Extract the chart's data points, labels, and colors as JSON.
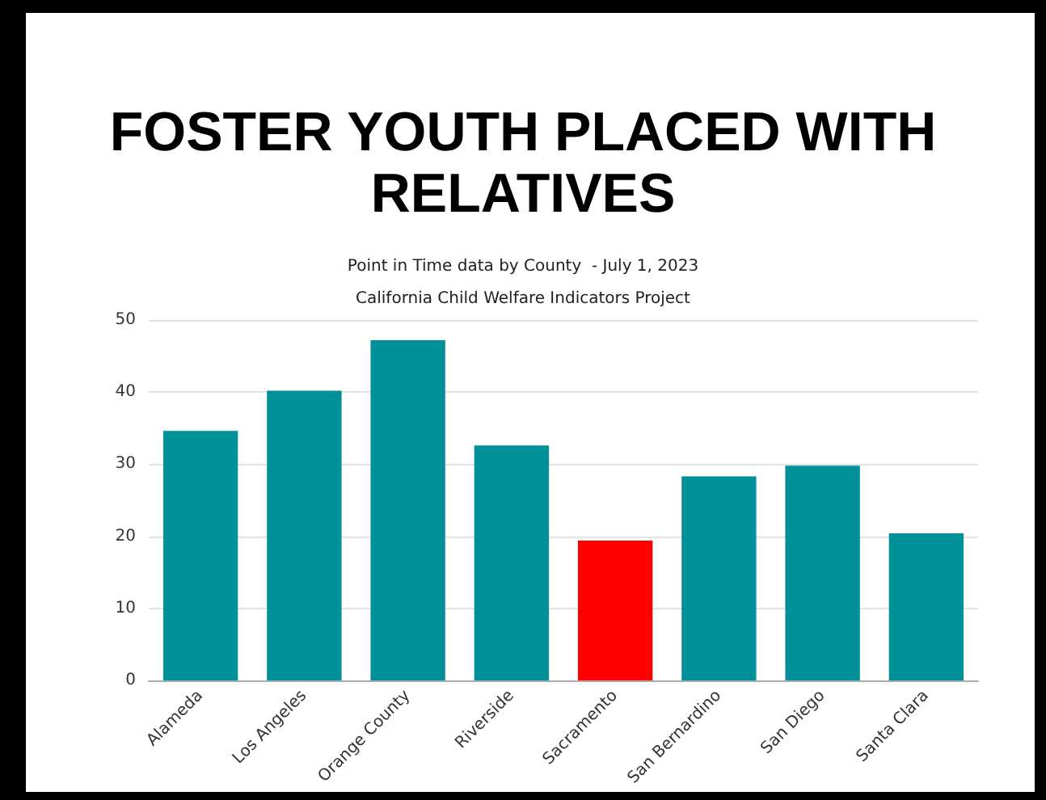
{
  "chart_data": {
    "type": "bar",
    "title": "FOSTER YOUTH PLACED WITH\nRELATIVES",
    "subtitle": "Point in Time data by County  - July 1, 2023\nCalifornia Child Welfare Indicators Project",
    "categories": [
      "Alameda",
      "Los Angeles",
      "Orange County",
      "Riverside",
      "Sacramento",
      "San Bernardino",
      "San Diego",
      "Santa Clara"
    ],
    "values": [
      34.6,
      40.2,
      47.2,
      32.6,
      19.4,
      28.3,
      29.8,
      20.4
    ],
    "colors": [
      "#009097",
      "#009097",
      "#009097",
      "#009097",
      "#ff0000",
      "#009097",
      "#009097",
      "#009097"
    ],
    "ylim": [
      0,
      50
    ],
    "yticks": [
      0,
      10,
      20,
      30,
      40,
      50
    ],
    "grid": "y"
  }
}
